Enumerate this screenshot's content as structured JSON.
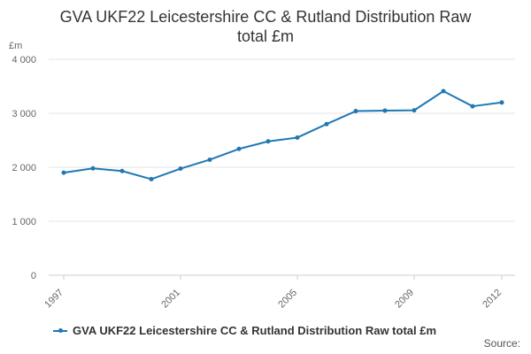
{
  "title_lines": [
    "GVA UKF22 Leicestershire CC & Rutland Distribution Raw",
    "total £m"
  ],
  "source_label": "Source:",
  "chart_data": {
    "type": "line",
    "title": "GVA UKF22 Leicestershire CC & Rutland Distribution Raw total £m",
    "ylabel": "£m",
    "xlabel": "",
    "ylim": [
      0,
      4000
    ],
    "yticks": [
      0,
      1000,
      2000,
      3000,
      4000
    ],
    "ytick_labels": [
      "0",
      "1 000",
      "2 000",
      "3 000",
      "4 000"
    ],
    "xlim": [
      1997,
      2012
    ],
    "xticks": [
      1997,
      2001,
      2005,
      2009,
      2012
    ],
    "xtick_labels": [
      "1997",
      "2001",
      "2005",
      "2009",
      "2012"
    ],
    "grid": "horizontal",
    "legend_position": "bottom",
    "series": [
      {
        "name": "GVA UKF22 Leicestershire CC & Rutland Distribution Raw total £m",
        "color": "#1f78b4",
        "x": [
          1997,
          1998,
          1999,
          2000,
          2001,
          2002,
          2003,
          2004,
          2005,
          2006,
          2007,
          2008,
          2009,
          2010,
          2011,
          2012
        ],
        "values": [
          1900,
          1980,
          1930,
          1780,
          1975,
          2140,
          2340,
          2480,
          2550,
          2800,
          3040,
          3050,
          3055,
          3410,
          3130,
          3200
        ]
      }
    ]
  }
}
